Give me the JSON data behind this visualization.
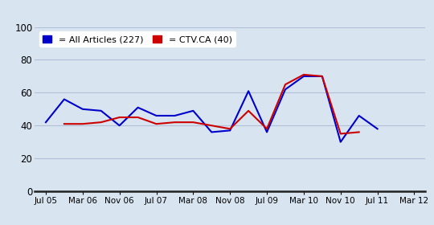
{
  "x_labels": [
    "Jul 05",
    "Mar 06",
    "Nov 06",
    "Jul 07",
    "Mar 08",
    "Nov 08",
    "Jul 09",
    "Mar 10",
    "Nov 10",
    "Jul 11",
    "Mar 12"
  ],
  "x_positions": [
    0,
    1,
    2,
    3,
    4,
    5,
    6,
    7,
    8,
    9,
    10
  ],
  "all_articles_x": [
    0,
    0.5,
    1,
    1.5,
    2,
    2.5,
    3,
    3.5,
    4,
    4.5,
    5,
    5.5,
    6,
    6.5,
    7,
    7.5,
    8,
    8.5,
    9
  ],
  "all_articles_y": [
    42,
    56,
    50,
    49,
    40,
    51,
    46,
    46,
    49,
    36,
    37,
    61,
    36,
    62,
    70,
    70,
    30,
    46,
    38
  ],
  "ctv_x": [
    0.5,
    1,
    1.5,
    2,
    2.5,
    3,
    3.5,
    4,
    4.5,
    5,
    5.5,
    6,
    6.5,
    7,
    7.5,
    8,
    8.5
  ],
  "ctv_y": [
    41,
    41,
    42,
    45,
    45,
    41,
    42,
    42,
    40,
    38,
    49,
    38,
    65,
    71,
    70,
    35,
    36
  ],
  "all_color": "#0000cc",
  "ctv_color": "#cc0000",
  "background_color": "#d8e4f0",
  "grid_color": "#b0c0d8",
  "ylim": [
    0,
    100
  ],
  "yticks": [
    0,
    20,
    40,
    60,
    80,
    100
  ],
  "legend_label_all": "= All Articles (227)",
  "legend_label_ctv": "= CTV.CA (40)"
}
